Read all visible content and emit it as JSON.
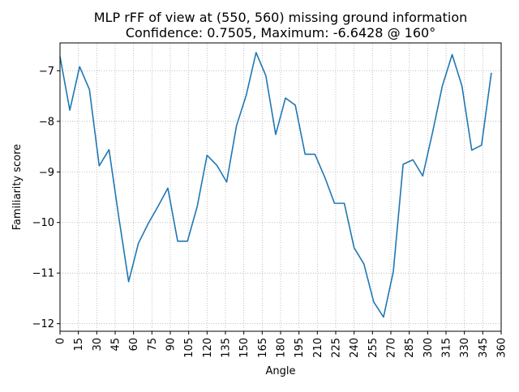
{
  "chart_data": {
    "type": "line",
    "title": "MLP rFF of view at (550, 560) missing ground information",
    "subtitle": "Confidence: 0.7505, Maximum: -6.6428 @ 160°",
    "xlabel": "Angle",
    "ylabel": "Familiarity score",
    "xlim": [
      0,
      360
    ],
    "ylim": [
      -12.15,
      -6.45
    ],
    "x_ticks": [
      0,
      15,
      30,
      45,
      60,
      75,
      90,
      105,
      120,
      135,
      150,
      165,
      180,
      195,
      210,
      225,
      240,
      255,
      270,
      285,
      300,
      315,
      330,
      345,
      360
    ],
    "y_ticks": [
      -12,
      -11,
      -10,
      -9,
      -8,
      -7
    ],
    "grid": true,
    "line_color": "#1f77b4",
    "series": [
      {
        "x": [
          0,
          8,
          16,
          24,
          32,
          40,
          48,
          56,
          64,
          72,
          80,
          88,
          96,
          104,
          112,
          120,
          128,
          136,
          144,
          152,
          160,
          168,
          176,
          184,
          192,
          200,
          208,
          216,
          224,
          232,
          240,
          248,
          256,
          264,
          272,
          280,
          288,
          296,
          304,
          312,
          320,
          328,
          336,
          344,
          352
        ],
        "y": [
          -6.72,
          -7.78,
          -6.92,
          -7.37,
          -8.88,
          -8.56,
          -9.9,
          -11.17,
          -10.41,
          -10.02,
          -9.68,
          -9.32,
          -10.37,
          -10.37,
          -9.68,
          -8.67,
          -8.87,
          -9.2,
          -8.09,
          -7.48,
          -6.64,
          -7.1,
          -8.26,
          -7.54,
          -7.68,
          -8.65,
          -8.65,
          -9.1,
          -9.62,
          -9.62,
          -10.5,
          -10.82,
          -11.57,
          -11.87,
          -10.97,
          -8.85,
          -8.76,
          -9.08,
          -8.22,
          -7.3,
          -6.68,
          -7.3,
          -8.57,
          -8.47,
          -7.04
        ]
      }
    ]
  }
}
